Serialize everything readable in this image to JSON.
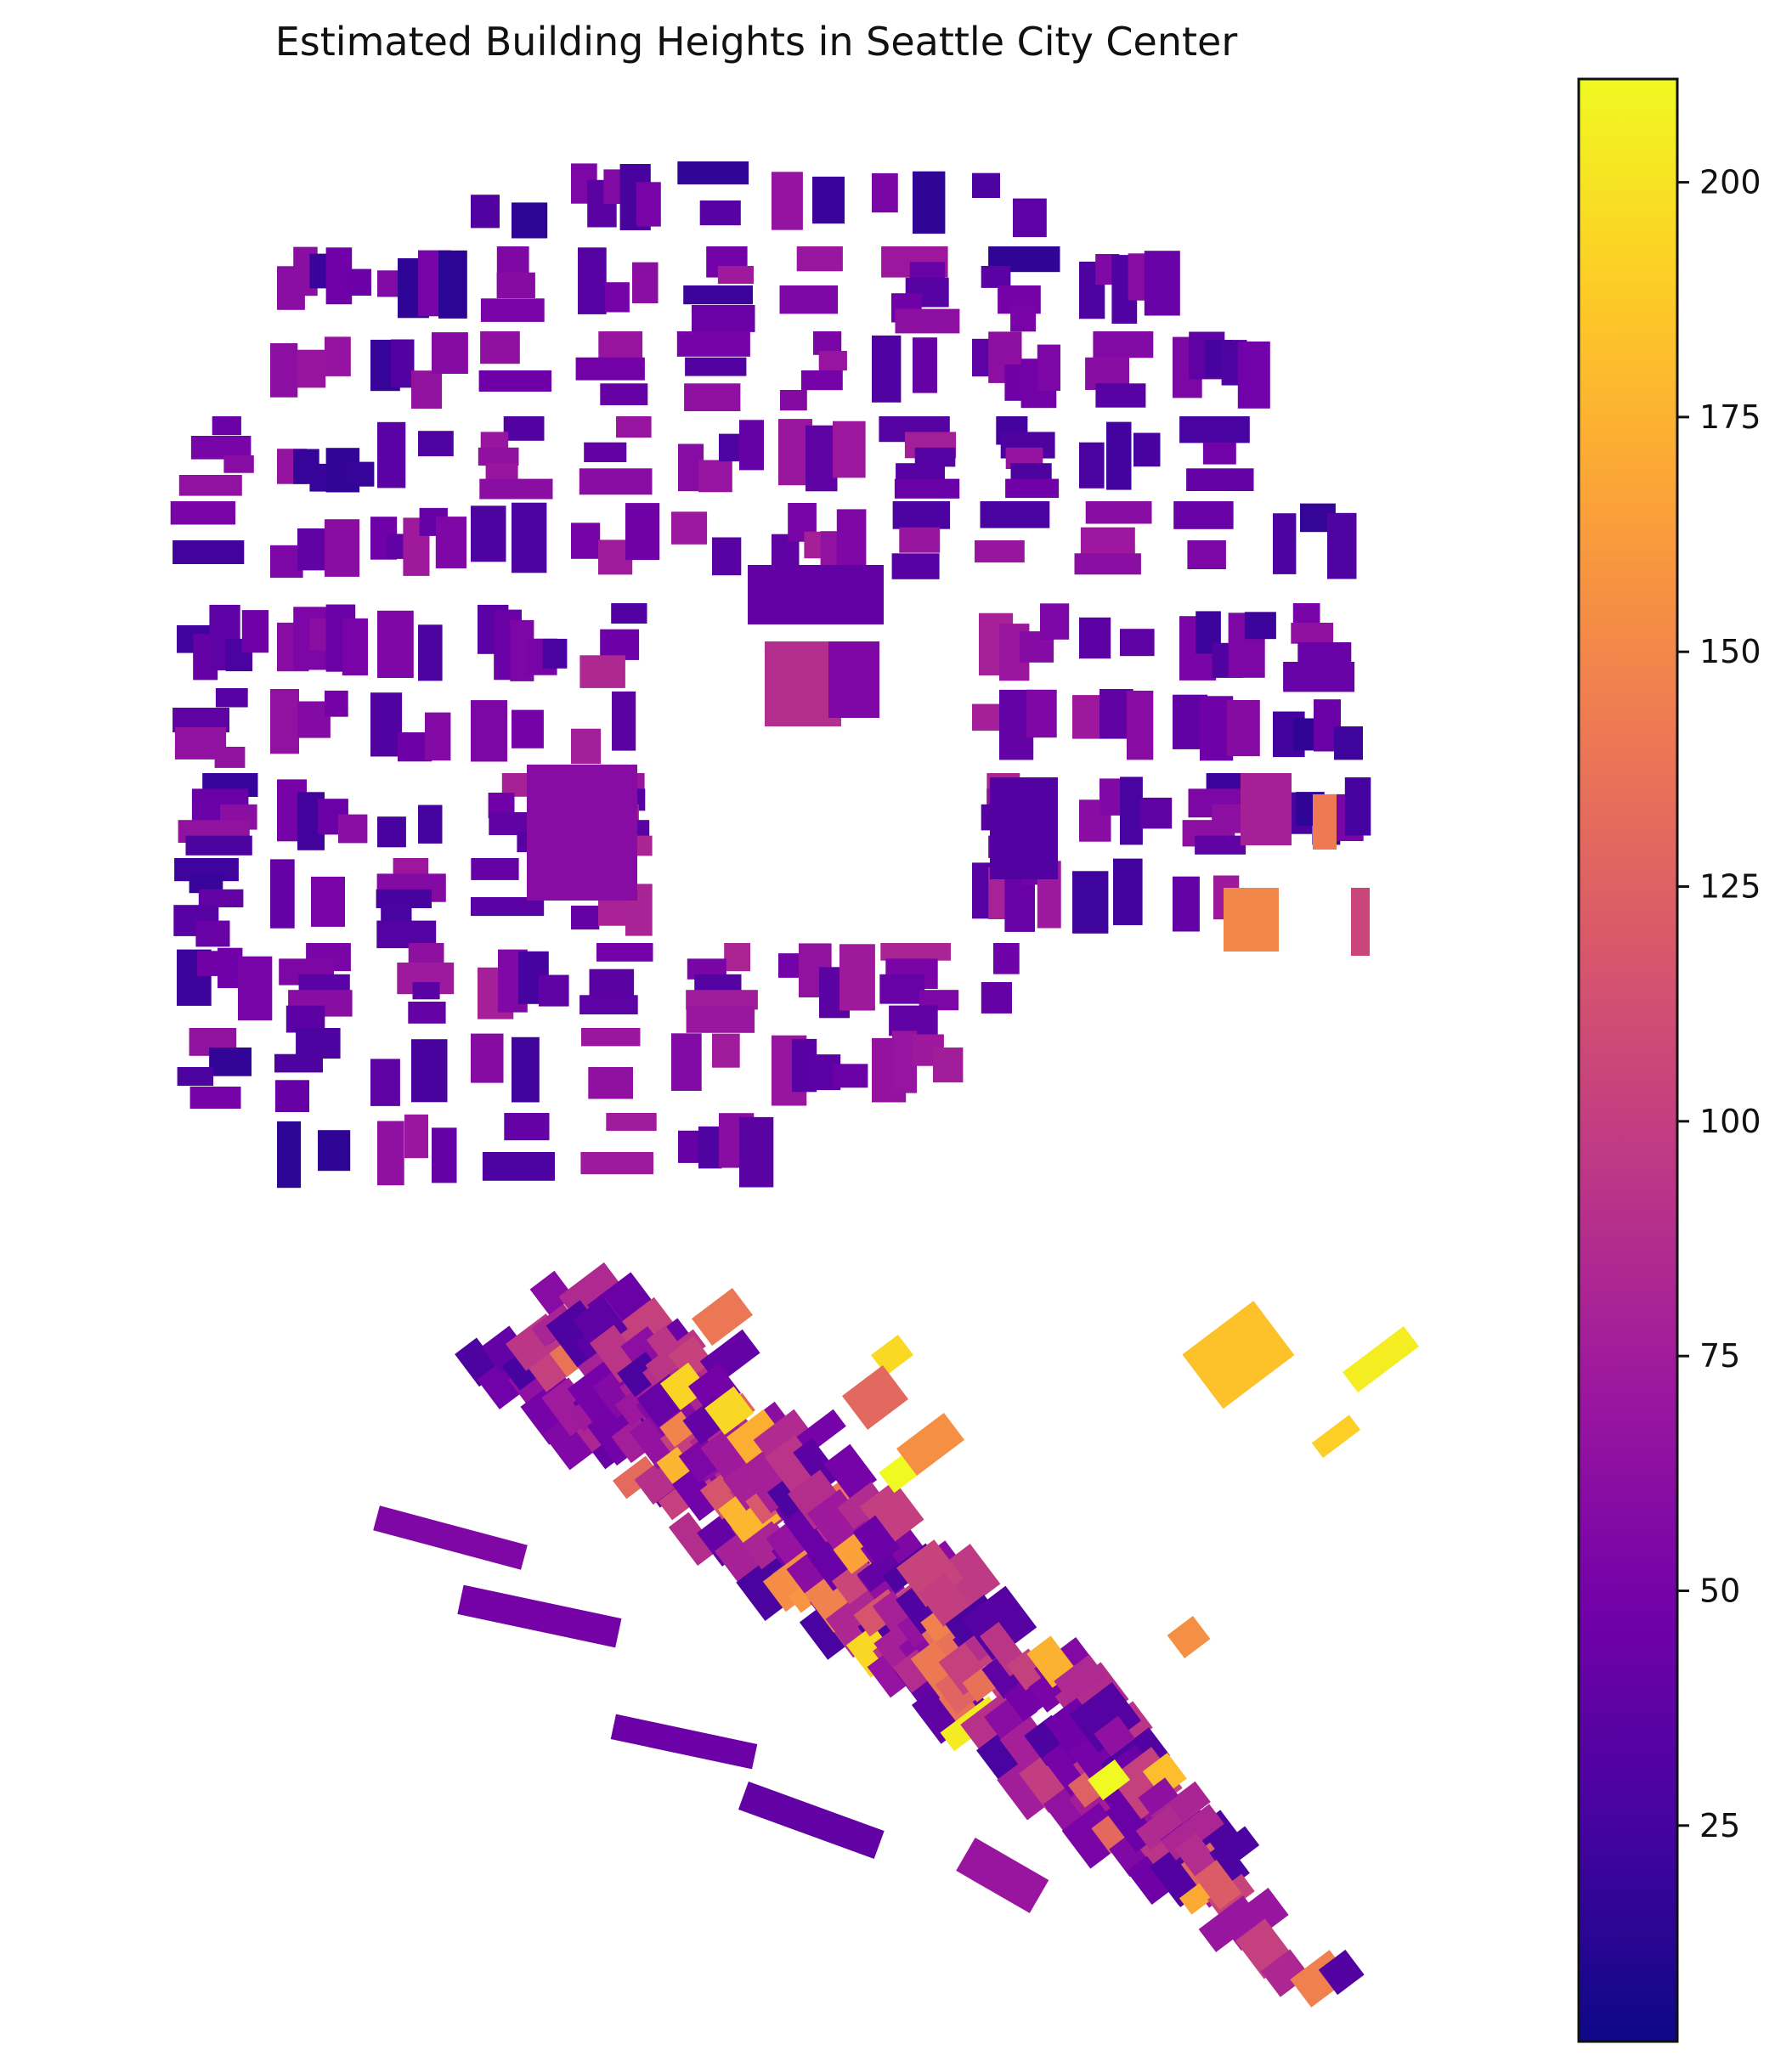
{
  "title": "Estimated Building Heights in Seattle City Center",
  "colormap": "plasma",
  "colormap_stops": [
    "#0d0887",
    "#46039f",
    "#7201a8",
    "#9c179e",
    "#bd3786",
    "#d8576b",
    "#ed7953",
    "#fb9f3a",
    "#fdca26",
    "#f0f921"
  ],
  "colorbar": {
    "min": 2,
    "max": 211,
    "ticks": [
      25,
      50,
      75,
      100,
      125,
      150,
      175,
      200
    ],
    "tick_labels": [
      "25",
      "50",
      "75",
      "100",
      "125",
      "150",
      "175",
      "200"
    ]
  },
  "chart_data": {
    "type": "heatmap",
    "title": "Estimated Building Heights in Seattle City Center",
    "value_label": "",
    "value_range": [
      2,
      211
    ],
    "districts": [
      {
        "name": "",
        "shape": "north grid",
        "typical_height_range": [
          10,
          70
        ]
      },
      {
        "name": "",
        "shape": "central grid",
        "typical_height_range": [
          20,
          100
        ]
      },
      {
        "name": "",
        "shape": "southern diagonal grid",
        "typical_height_range": [
          20,
          211
        ]
      }
    ]
  }
}
